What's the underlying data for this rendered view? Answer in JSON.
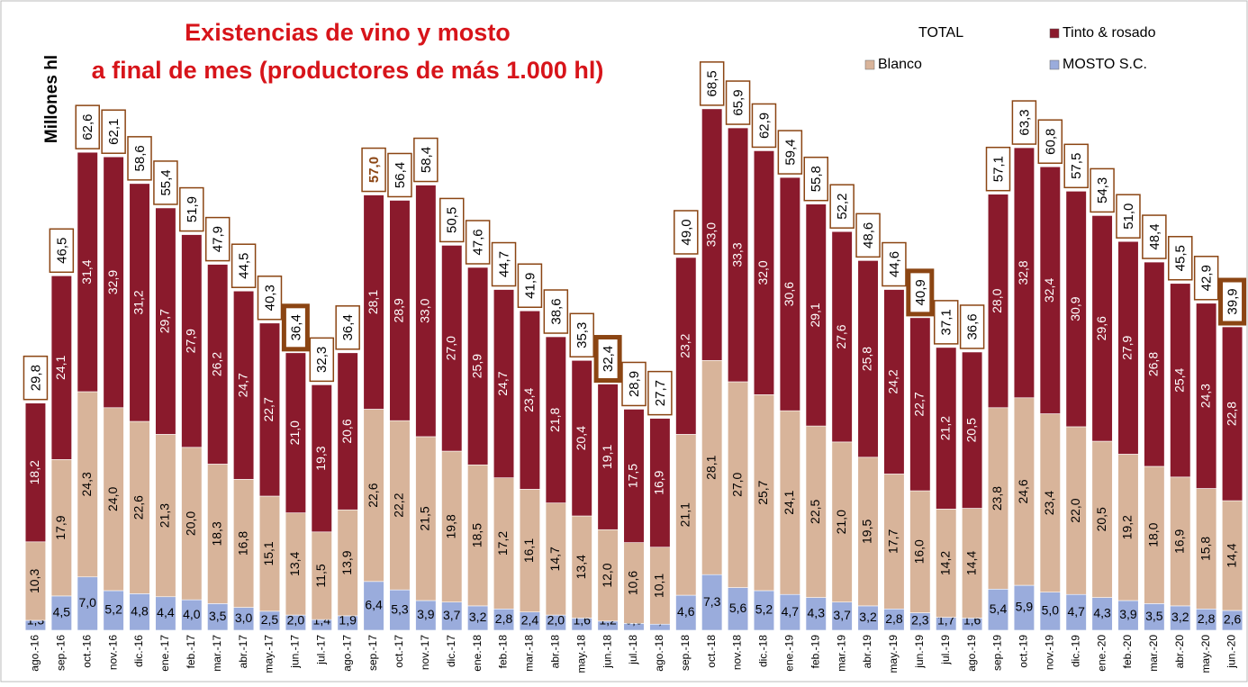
{
  "chart_data": {
    "type": "stacked_bar",
    "title": "Existencias de vino y mosto",
    "subtitle": "a final de mes (productores de más 1.000 hl)",
    "y_label": "Millones hl",
    "categories": [
      "ago.-16",
      "sep.-16",
      "oct.-16",
      "nov.-16",
      "dic.-16",
      "ene.-17",
      "feb.-17",
      "mar.-17",
      "abr.-17",
      "may.-17",
      "jun.-17",
      "jul.-17",
      "ago.-17",
      "sep.-17",
      "oct.-17",
      "nov.-17",
      "dic.-17",
      "ene.-18",
      "feb.-18",
      "mar.-18",
      "abr.-18",
      "may.-18",
      "jun.-18",
      "jul.-18",
      "ago.-18",
      "sep.-18",
      "oct.-18",
      "nov.-18",
      "dic.-18",
      "ene.-19",
      "feb.-19",
      "mar.-19",
      "abr.-19",
      "may.-19",
      "jun.-19",
      "jul.-19",
      "ago.-19",
      "sep.-19",
      "oct.-19",
      "nov.-19",
      "dic.-19",
      "ene.-20",
      "feb.-20",
      "mar.-20",
      "abr.-20",
      "may.-20",
      "jun.-20"
    ],
    "ylim": [
      0,
      75
    ],
    "series": [
      {
        "name": "MOSTO S.C.",
        "color": "#9aacdc",
        "values": [
          1.3,
          4.5,
          7.0,
          5.2,
          4.8,
          4.4,
          4.0,
          3.5,
          3.0,
          2.5,
          2.0,
          1.4,
          1.9,
          6.4,
          5.3,
          3.9,
          3.7,
          3.2,
          2.8,
          2.4,
          2.0,
          1.6,
          1.2,
          0.9,
          0.8,
          4.6,
          7.3,
          5.6,
          5.2,
          4.7,
          4.3,
          3.7,
          3.2,
          2.8,
          2.3,
          1.7,
          1.6,
          5.4,
          5.9,
          5.0,
          4.7,
          4.3,
          3.9,
          3.5,
          3.2,
          2.8,
          2.6
        ],
        "value_labels": [
          "1,3",
          "4,5",
          "7,0",
          "5,2",
          "4,8",
          "4,4",
          "4,0",
          "3,5",
          "3,0",
          "2,5",
          "2,0",
          "1,4",
          "1,9",
          "6,4",
          "5,3",
          "3,9",
          "3,7",
          "3,2",
          "2,8",
          "2,4",
          "2,0",
          "1,6",
          "1,2",
          "0,9",
          "0,8",
          "4,6",
          "7,3",
          "5,6",
          "5,2",
          "4,7",
          "4,3",
          "3,7",
          "3,2",
          "2,8",
          "2,3",
          "1,7",
          "1,6",
          "5,4",
          "5,9",
          "5,0",
          "4,7",
          "4,3",
          "3,9",
          "3,5",
          "3,2",
          "2,8",
          "2,6"
        ]
      },
      {
        "name": "Blanco",
        "color": "#d8b49a",
        "values": [
          10.3,
          17.9,
          24.3,
          24.0,
          22.6,
          21.3,
          20.0,
          18.3,
          16.8,
          15.1,
          13.4,
          11.5,
          13.9,
          22.6,
          22.2,
          21.5,
          19.8,
          18.5,
          17.2,
          16.1,
          14.7,
          13.4,
          12.0,
          10.6,
          10.1,
          21.1,
          28.1,
          27.0,
          25.7,
          24.1,
          22.5,
          21.0,
          19.5,
          17.7,
          16.0,
          14.2,
          14.4,
          23.8,
          24.6,
          23.4,
          22.0,
          20.5,
          19.2,
          18.0,
          16.9,
          15.8,
          14.4
        ],
        "value_labels": [
          "10,3",
          "17,9",
          "24,3",
          "24,0",
          "22,6",
          "21,3",
          "20,0",
          "18,3",
          "16,8",
          "15,1",
          "13,4",
          "11,5",
          "13,9",
          "22,6",
          "22,2",
          "21,5",
          "19,8",
          "18,5",
          "17,2",
          "16,1",
          "14,7",
          "13,4",
          "12,0",
          "10,6",
          "10,1",
          "21,1",
          "28,1",
          "27,0",
          "25,7",
          "24,1",
          "22,5",
          "21,0",
          "19,5",
          "17,7",
          "16,0",
          "14,2",
          "14,4",
          "23,8",
          "24,6",
          "23,4",
          "22,0",
          "20,5",
          "19,2",
          "18,0",
          "16,9",
          "15,8",
          "14,4"
        ]
      },
      {
        "name": "Tinto & rosado",
        "color": "#8a1a2c",
        "values": [
          18.2,
          24.1,
          31.4,
          32.9,
          31.2,
          29.7,
          27.9,
          26.2,
          24.7,
          22.7,
          21.0,
          19.3,
          20.6,
          28.1,
          28.9,
          33.0,
          27.0,
          25.9,
          24.7,
          23.4,
          21.8,
          20.4,
          19.1,
          17.5,
          16.9,
          23.2,
          33.0,
          33.3,
          32.0,
          30.6,
          29.1,
          27.6,
          25.8,
          24.2,
          22.7,
          21.2,
          20.5,
          28.0,
          32.8,
          32.4,
          30.9,
          29.6,
          27.9,
          26.8,
          25.4,
          24.3,
          22.8
        ],
        "value_labels": [
          "18,2",
          "24,1",
          "31,4",
          "32,9",
          "31,2",
          "29,7",
          "27,9",
          "26,2",
          "24,7",
          "22,7",
          "21,0",
          "19,3",
          "20,6",
          "28,1",
          "28,9",
          "33,0",
          "27,0",
          "25,9",
          "24,7",
          "23,4",
          "21,8",
          "20,4",
          "19,1",
          "17,5",
          "16,9",
          "23,2",
          "33,0",
          "33,3",
          "32,0",
          "30,6",
          "29,1",
          "27,6",
          "25,8",
          "24,2",
          "22,7",
          "21,2",
          "20,5",
          "28,0",
          "32,8",
          "32,4",
          "30,9",
          "29,6",
          "27,9",
          "26,8",
          "25,4",
          "24,3",
          "22,8"
        ]
      },
      {
        "name": "TOTAL",
        "color": "#8b4513",
        "values": [
          29.8,
          46.5,
          62.6,
          62.1,
          58.6,
          55.4,
          51.9,
          47.9,
          44.5,
          40.3,
          36.4,
          32.3,
          36.4,
          57.0,
          56.4,
          58.4,
          50.5,
          47.6,
          44.7,
          41.9,
          38.6,
          35.3,
          32.4,
          28.9,
          27.7,
          49.0,
          68.5,
          65.9,
          62.9,
          59.4,
          55.8,
          52.2,
          48.6,
          44.6,
          40.9,
          37.1,
          36.6,
          57.1,
          63.3,
          60.8,
          57.5,
          54.3,
          51.0,
          48.4,
          45.5,
          42.9,
          39.9
        ],
        "value_labels": [
          "29,8",
          "46,5",
          "62,6",
          "62,1",
          "58,6",
          "55,4",
          "51,9",
          "47,9",
          "44,5",
          "40,3",
          "36,4",
          "32,3",
          "36,4",
          "57,0",
          "56,4",
          "58,4",
          "50,5",
          "47,6",
          "44,7",
          "41,9",
          "38,6",
          "35,3",
          "32,4",
          "28,9",
          "27,7",
          "49,0",
          "68,5",
          "65,9",
          "62,9",
          "59,4",
          "55,8",
          "52,2",
          "48,6",
          "44,6",
          "40,9",
          "37,1",
          "36,6",
          "57,1",
          "63,3",
          "60,8",
          "57,5",
          "54,3",
          "51,0",
          "48,4",
          "45,5",
          "42,9",
          "39,9"
        ]
      }
    ],
    "highlighted": [
      "jun.-17",
      "jun.-18",
      "jun.-19",
      "jun.-20"
    ],
    "emphasized": [
      "sep.-17"
    ]
  }
}
